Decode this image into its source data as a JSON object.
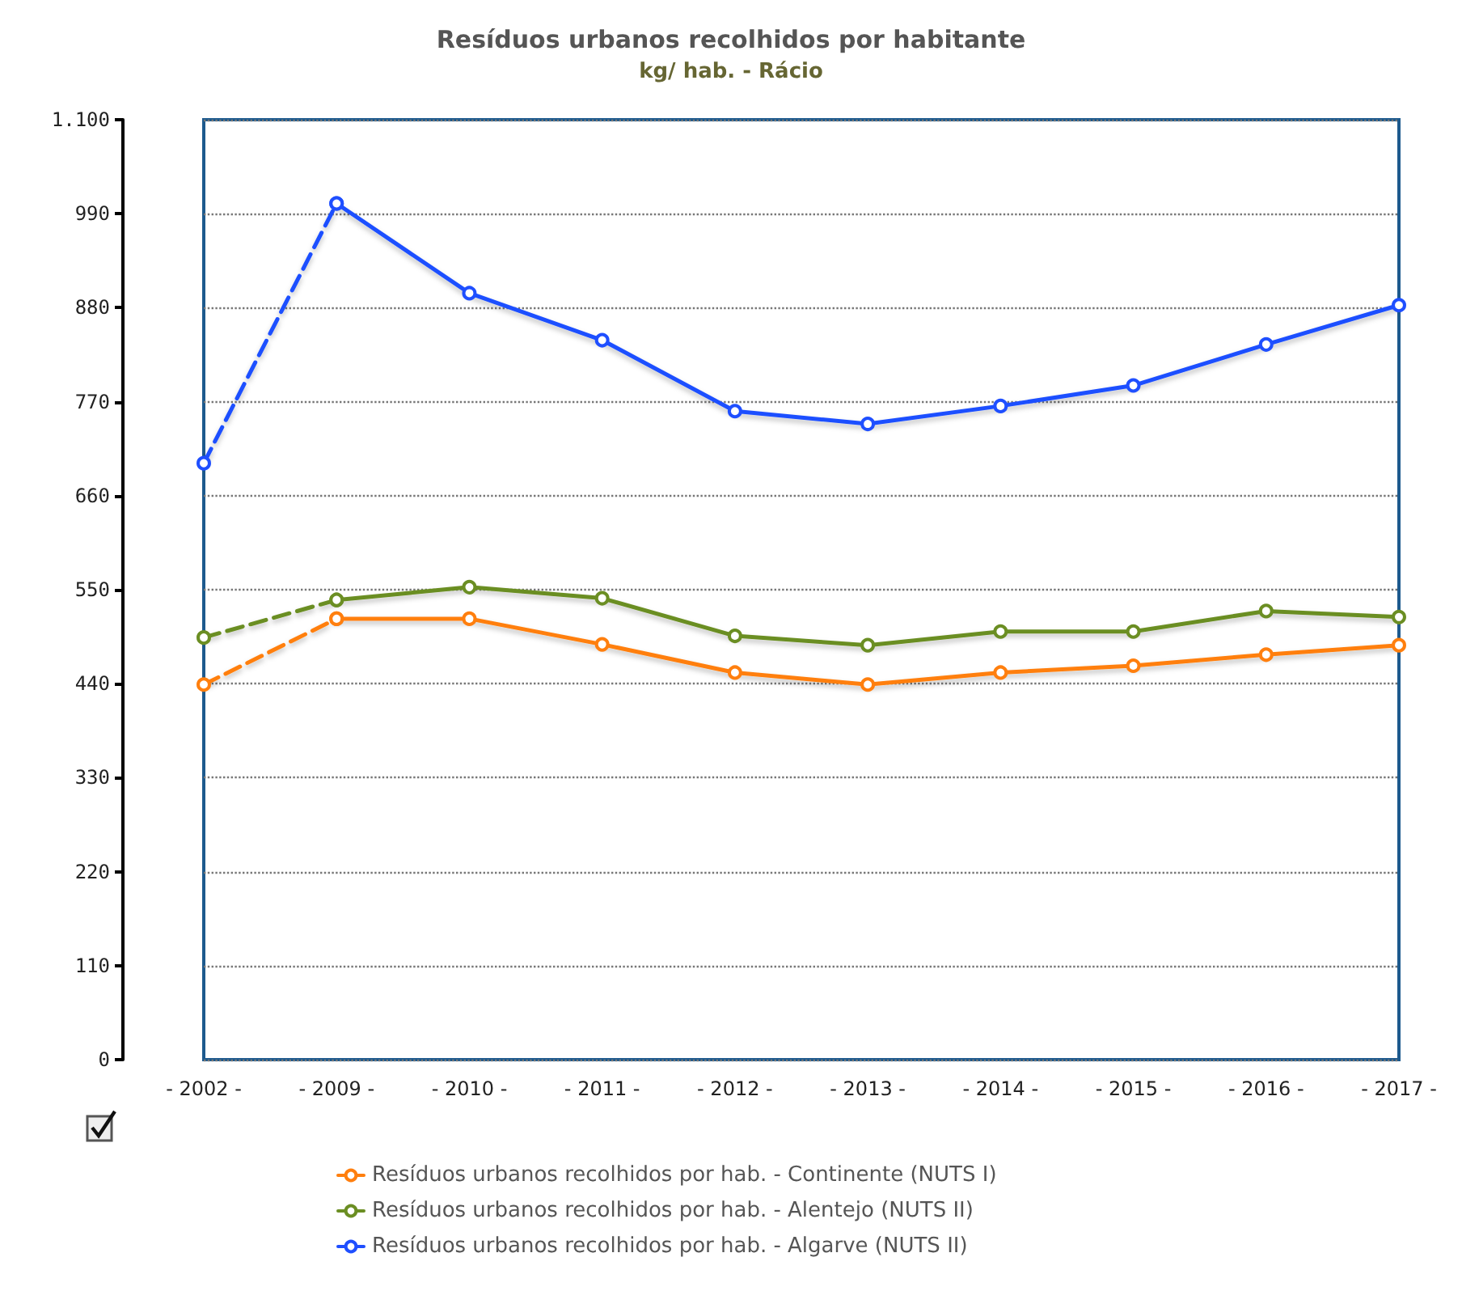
{
  "chart_data": {
    "type": "line",
    "title": "Resíduos urbanos recolhidos por habitante",
    "subtitle": "kg/ hab. - Rácio",
    "categories": [
      "- 2002 -",
      "- 2009 -",
      "- 2010 -",
      "- 2011 -",
      "- 2012 -",
      "- 2013 -",
      "- 2014 -",
      "- 2015 -",
      "- 2016 -",
      "- 2017 -"
    ],
    "series": [
      {
        "name": "Resíduos urbanos recolhidos por hab. - Continente (NUTS I)",
        "color": "#ff7f0e",
        "values": [
          null,
          516,
          516,
          486,
          453,
          439,
          453,
          461,
          474,
          485
        ]
      },
      {
        "name": "Resíduos urbanos recolhidos por hab. - Alentejo (NUTS II)",
        "color": "#6b8e23",
        "values": [
          null,
          538,
          553,
          540,
          496,
          485,
          501,
          501,
          525,
          518
        ]
      },
      {
        "name": "Resíduos urbanos recolhidos por hab. - Algarve (NUTS II)",
        "color": "#1f4fff",
        "values": [
          null,
          1002,
          897,
          842,
          759,
          744,
          765,
          789,
          837,
          883
        ]
      },
      {
        "color": "#ff7f0e",
        "line_style": "dashed",
        "values": [
          439,
          516,
          null,
          null,
          null,
          null,
          null,
          null,
          null,
          null
        ]
      },
      {
        "color": "#6b8e23",
        "line_style": "dashed",
        "values": [
          494,
          538,
          null,
          null,
          null,
          null,
          null,
          null,
          null,
          null
        ]
      },
      {
        "color": "#1f4fff",
        "line_style": "dashed",
        "values": [
          698,
          1002,
          null,
          null,
          null,
          null,
          null,
          null,
          null,
          null
        ]
      }
    ],
    "ylim": [
      0,
      1100
    ],
    "yticks": [
      0,
      110,
      220,
      330,
      440,
      550,
      660,
      770,
      880,
      990,
      {
        "value": 1100,
        "label": "1.100"
      }
    ],
    "grid": "y",
    "legend": "bottom",
    "marker": "circle",
    "line_style": "solid"
  }
}
